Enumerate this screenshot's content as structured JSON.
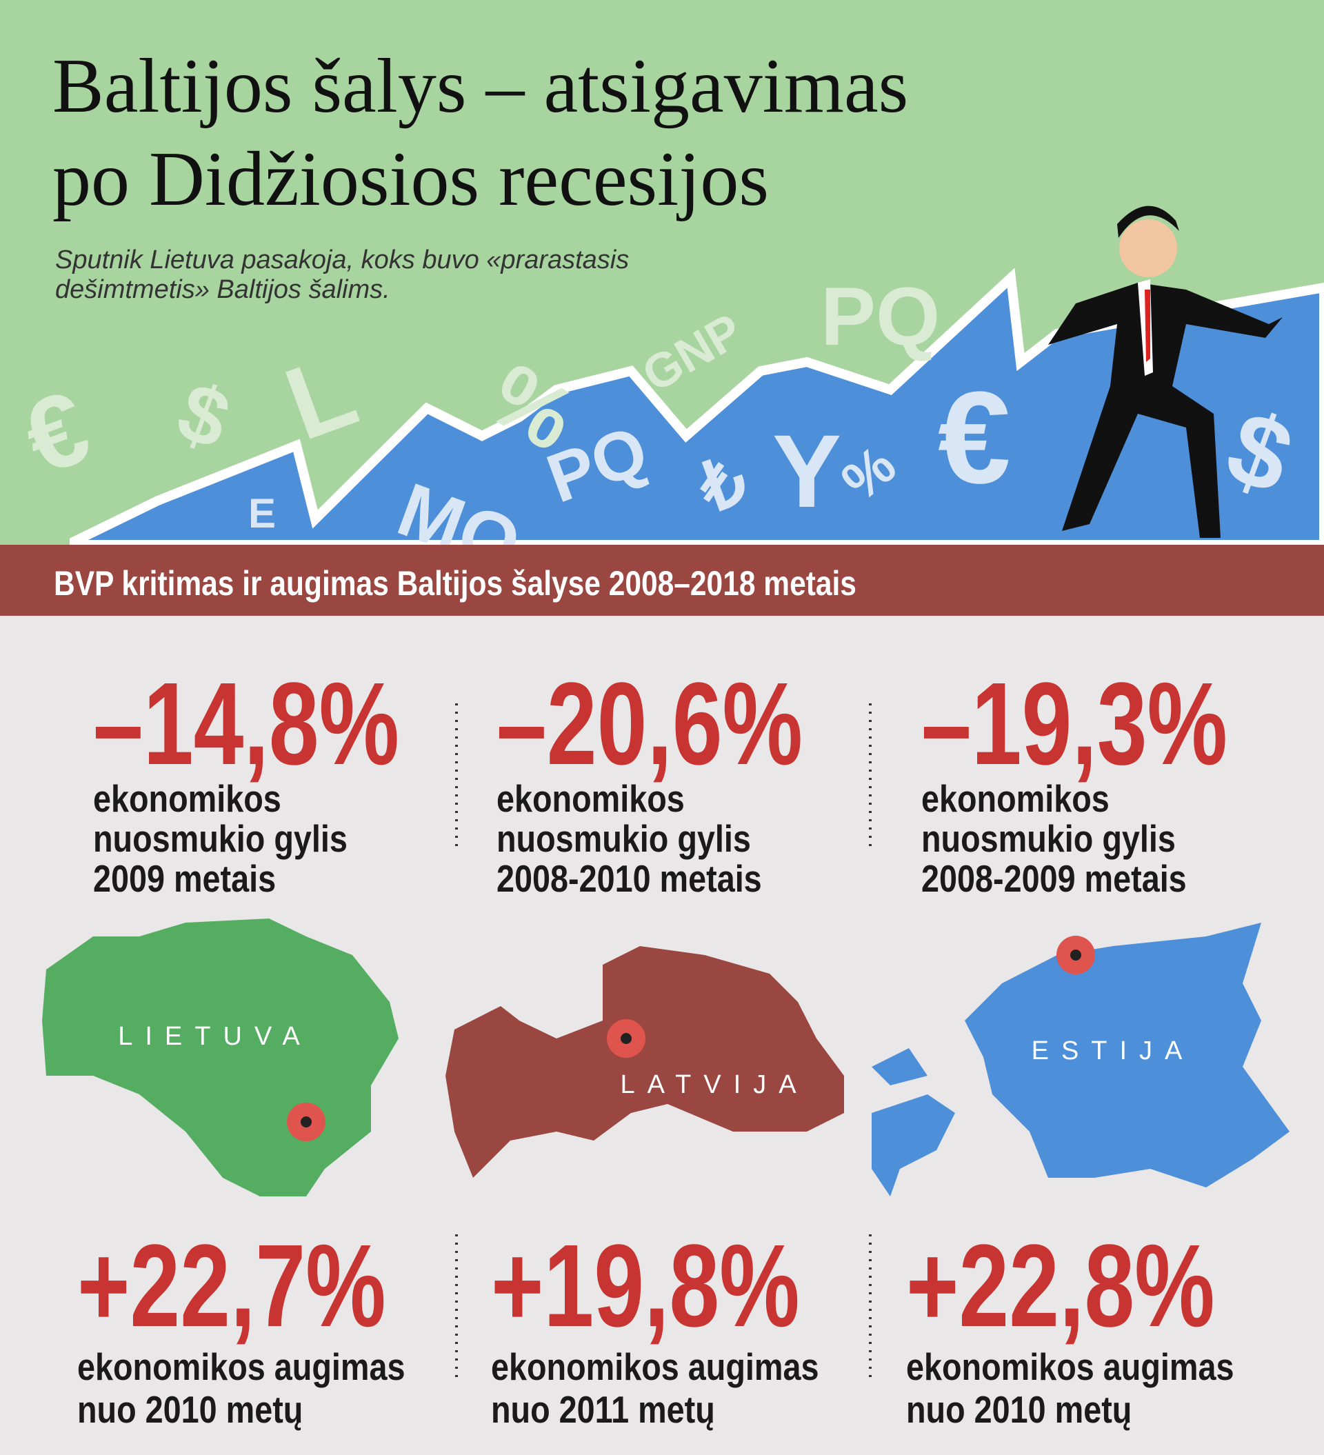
{
  "header": {
    "title": [
      "Baltijos šalys – atsigavimas",
      "po Didžiosios recesijos"
    ],
    "subtitle": [
      "Sputnik Lietuva pasakoja, koks buvo «prarastasis",
      "dešimtmetis» Baltijos šalims."
    ],
    "decorations": [
      "€",
      "$",
      "L",
      "%",
      "GNP",
      "PQ",
      "E",
      "MO",
      "PQ",
      "₺",
      "Y",
      "%",
      "€",
      "$"
    ]
  },
  "section": {
    "title": "BVP kritimas ir augimas Baltijos šalyse 2008–2018 metais"
  },
  "decline": [
    {
      "value": "–14,8%",
      "lines": [
        "ekonomikos",
        "nuosmukio gylis",
        "2009 metais"
      ]
    },
    {
      "value": "–20,6%",
      "lines": [
        "ekonomikos",
        "nuosmukio gylis",
        "2008-2010 metais"
      ]
    },
    {
      "value": "–19,3%",
      "lines": [
        "ekonomikos",
        "nuosmukio gylis",
        "2008-2009 metais"
      ]
    }
  ],
  "countries": [
    "LIETUVA",
    "LATVIJA",
    "ESTIJA"
  ],
  "growth": [
    {
      "value": "+22,7%",
      "lines": [
        "ekonomikos augimas",
        "nuo 2010 metų"
      ]
    },
    {
      "value": "+19,8%",
      "lines": [
        "ekonomikos augimas",
        "nuo 2011 metų"
      ]
    },
    {
      "value": "+22,8%",
      "lines": [
        "ekonomikos augimas",
        "nuo 2010 metų"
      ]
    }
  ]
}
